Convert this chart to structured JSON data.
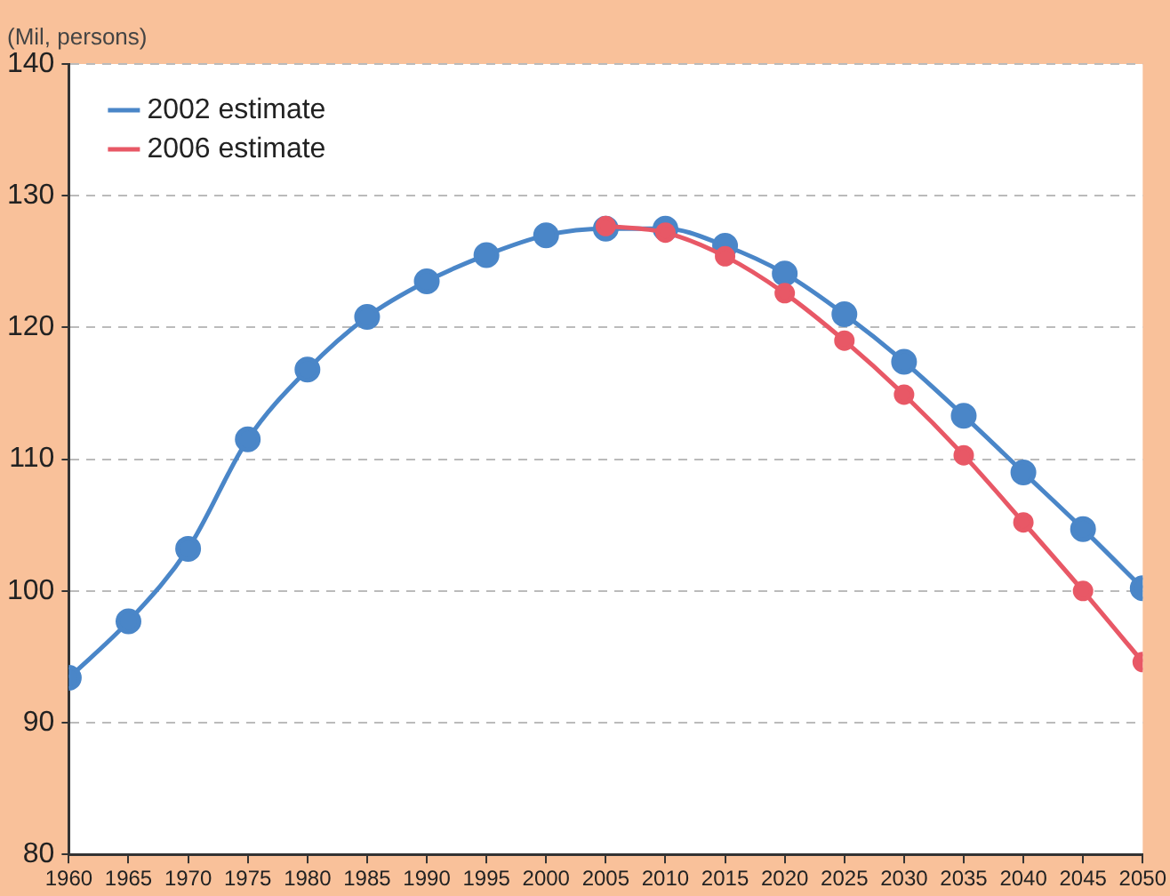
{
  "chart_data": {
    "type": "line",
    "ylabel": "(Mil, persons)",
    "x": [
      1960,
      1965,
      1970,
      1975,
      1980,
      1985,
      1990,
      1995,
      2000,
      2005,
      2010,
      2015,
      2020,
      2025,
      2030,
      2035,
      2040,
      2045,
      2050
    ],
    "series": [
      {
        "name": "2002 estimate",
        "color": "#4a86c8",
        "values": [
          93.4,
          97.7,
          103.2,
          111.5,
          116.8,
          120.8,
          123.5,
          125.5,
          127.0,
          127.5,
          127.5,
          126.2,
          124.1,
          121.0,
          117.4,
          113.3,
          109.0,
          104.7,
          100.2
        ]
      },
      {
        "name": "2006 estimate",
        "color": "#e85866",
        "values": [
          null,
          null,
          null,
          null,
          null,
          null,
          null,
          null,
          null,
          127.7,
          127.2,
          125.4,
          122.6,
          119.0,
          114.9,
          110.3,
          105.2,
          100.0,
          94.6
        ]
      }
    ],
    "xlim": [
      1960,
      2050
    ],
    "xticks": [
      1960,
      1965,
      1970,
      1975,
      1980,
      1985,
      1990,
      1995,
      2000,
      2005,
      2010,
      2015,
      2020,
      2025,
      2030,
      2035,
      2040,
      2045,
      2050
    ],
    "ylim": [
      80,
      140
    ],
    "yticks": [
      80,
      90,
      100,
      110,
      120,
      130,
      140
    ],
    "grid": "y",
    "legend": "top left",
    "marker": "circle",
    "line_style": "solid"
  }
}
